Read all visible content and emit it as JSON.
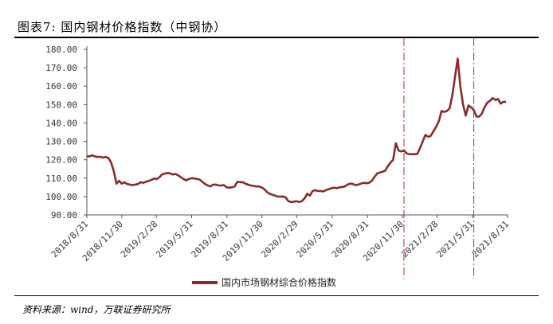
{
  "header": {
    "title": "图表7:  国内钢材价格指数（中钢协）"
  },
  "footer": {
    "source": "资料来源：wind，万联证券研究所"
  },
  "chart_data": {
    "type": "line",
    "title": "图表7:  国内钢材价格指数（中钢协）",
    "ylim": [
      90,
      180
    ],
    "yticks": [
      "90.00",
      "100.00",
      "110.00",
      "120.00",
      "130.00",
      "140.00",
      "150.00",
      "160.00",
      "170.00",
      "180.00"
    ],
    "xlabels": [
      "2018/8/31",
      "2018/11/30",
      "2019/2/28",
      "2019/5/31",
      "2019/8/31",
      "2019/11/30",
      "2020/2/29",
      "2020/5/31",
      "2020/8/31",
      "2020/11/30",
      "2021/2/28",
      "2021/5/31",
      "2021/8/31"
    ],
    "x_range": [
      "2018-08-31",
      "2021-08-31"
    ],
    "grid": false,
    "legend_position": "bottom",
    "line_color": "#8b2a2a",
    "reference_line_color": "#cc2222",
    "reference_lines": [
      "2020-12-04",
      "2021-06-04"
    ],
    "series": [
      {
        "name": "国内市场钢材综合价格指数",
        "points": [
          [
            "2018-08-31",
            122.0
          ],
          [
            "2018-09-07",
            121.8
          ],
          [
            "2018-09-14",
            122.5
          ],
          [
            "2018-09-21",
            121.8
          ],
          [
            "2018-09-28",
            121.5
          ],
          [
            "2018-10-05",
            121.6
          ],
          [
            "2018-10-12",
            121.2
          ],
          [
            "2018-10-19",
            121.5
          ],
          [
            "2018-10-26",
            121.0
          ],
          [
            "2018-11-02",
            118.5
          ],
          [
            "2018-11-09",
            114.0
          ],
          [
            "2018-11-16",
            107.0
          ],
          [
            "2018-11-23",
            108.5
          ],
          [
            "2018-11-30",
            107.0
          ],
          [
            "2018-12-07",
            107.8
          ],
          [
            "2018-12-14",
            106.8
          ],
          [
            "2018-12-21",
            106.5
          ],
          [
            "2018-12-28",
            106.2
          ],
          [
            "2019-01-04",
            106.5
          ],
          [
            "2019-01-11",
            106.8
          ],
          [
            "2019-01-18",
            107.8
          ],
          [
            "2019-01-25",
            107.5
          ],
          [
            "2019-02-01",
            108.0
          ],
          [
            "2019-02-08",
            108.5
          ],
          [
            "2019-02-15",
            109.0
          ],
          [
            "2019-02-22",
            109.8
          ],
          [
            "2019-03-01",
            109.5
          ],
          [
            "2019-03-08",
            110.5
          ],
          [
            "2019-03-15",
            112.0
          ],
          [
            "2019-03-22",
            112.5
          ],
          [
            "2019-03-29",
            112.8
          ],
          [
            "2019-04-05",
            112.6
          ],
          [
            "2019-04-12",
            112.0
          ],
          [
            "2019-04-19",
            112.3
          ],
          [
            "2019-04-26",
            111.5
          ],
          [
            "2019-05-03",
            110.5
          ],
          [
            "2019-05-10",
            109.5
          ],
          [
            "2019-05-17",
            108.8
          ],
          [
            "2019-05-24",
            109.5
          ],
          [
            "2019-05-31",
            110.0
          ],
          [
            "2019-06-07",
            109.8
          ],
          [
            "2019-06-14",
            109.5
          ],
          [
            "2019-06-21",
            109.2
          ],
          [
            "2019-06-28",
            108.0
          ],
          [
            "2019-07-05",
            106.8
          ],
          [
            "2019-07-12",
            106.0
          ],
          [
            "2019-07-19",
            105.5
          ],
          [
            "2019-07-26",
            106.5
          ],
          [
            "2019-08-02",
            106.5
          ],
          [
            "2019-08-09",
            106.0
          ],
          [
            "2019-08-16",
            106.0
          ],
          [
            "2019-08-23",
            106.2
          ],
          [
            "2019-08-30",
            105.0
          ],
          [
            "2019-09-06",
            104.8
          ],
          [
            "2019-09-13",
            105.0
          ],
          [
            "2019-09-20",
            105.5
          ],
          [
            "2019-09-27",
            108.0
          ],
          [
            "2019-10-04",
            107.8
          ],
          [
            "2019-10-11",
            107.8
          ],
          [
            "2019-10-18",
            107.0
          ],
          [
            "2019-10-25",
            106.5
          ],
          [
            "2019-11-01",
            106.0
          ],
          [
            "2019-11-08",
            105.8
          ],
          [
            "2019-11-15",
            105.5
          ],
          [
            "2019-11-22",
            105.5
          ],
          [
            "2019-11-29",
            105.0
          ],
          [
            "2019-12-06",
            104.0
          ],
          [
            "2019-12-13",
            102.5
          ],
          [
            "2019-12-20",
            101.5
          ],
          [
            "2019-12-27",
            101.0
          ],
          [
            "2020-01-03",
            100.5
          ],
          [
            "2020-01-10",
            100.0
          ],
          [
            "2020-01-17",
            100.0
          ],
          [
            "2020-01-24",
            100.0
          ],
          [
            "2020-01-31",
            99.5
          ],
          [
            "2020-02-07",
            97.5
          ],
          [
            "2020-02-14",
            97.0
          ],
          [
            "2020-02-21",
            97.2
          ],
          [
            "2020-02-28",
            97.5
          ],
          [
            "2020-03-06",
            97.0
          ],
          [
            "2020-03-13",
            97.5
          ],
          [
            "2020-03-20",
            99.0
          ],
          [
            "2020-03-27",
            101.5
          ],
          [
            "2020-04-03",
            100.5
          ],
          [
            "2020-04-10",
            103.0
          ],
          [
            "2020-04-17",
            103.5
          ],
          [
            "2020-04-24",
            103.0
          ],
          [
            "2020-05-01",
            103.0
          ],
          [
            "2020-05-08",
            102.8
          ],
          [
            "2020-05-15",
            103.5
          ],
          [
            "2020-05-22",
            104.0
          ],
          [
            "2020-05-29",
            104.5
          ],
          [
            "2020-06-05",
            104.8
          ],
          [
            "2020-06-12",
            104.5
          ],
          [
            "2020-06-19",
            105.0
          ],
          [
            "2020-06-26",
            105.2
          ],
          [
            "2020-07-03",
            105.5
          ],
          [
            "2020-07-10",
            106.5
          ],
          [
            "2020-07-17",
            107.0
          ],
          [
            "2020-07-24",
            106.8
          ],
          [
            "2020-07-31",
            106.2
          ],
          [
            "2020-08-07",
            106.5
          ],
          [
            "2020-08-14",
            107.0
          ],
          [
            "2020-08-21",
            107.5
          ],
          [
            "2020-08-28",
            107.2
          ],
          [
            "2020-09-04",
            107.5
          ],
          [
            "2020-09-11",
            108.5
          ],
          [
            "2020-09-18",
            110.5
          ],
          [
            "2020-09-25",
            112.5
          ],
          [
            "2020-10-02",
            113.0
          ],
          [
            "2020-10-09",
            113.5
          ],
          [
            "2020-10-16",
            114.0
          ],
          [
            "2020-10-23",
            116.5
          ],
          [
            "2020-10-30",
            118.5
          ],
          [
            "2020-11-06",
            120.0
          ],
          [
            "2020-11-13",
            129.0
          ],
          [
            "2020-11-20",
            125.0
          ],
          [
            "2020-11-27",
            124.5
          ],
          [
            "2020-12-04",
            125.0
          ],
          [
            "2020-12-11",
            123.5
          ],
          [
            "2020-12-18",
            123.0
          ],
          [
            "2020-12-25",
            123.0
          ],
          [
            "2021-01-01",
            123.0
          ],
          [
            "2021-01-08",
            123.2
          ],
          [
            "2021-01-15",
            126.5
          ],
          [
            "2021-01-22",
            130.0
          ],
          [
            "2021-01-29",
            133.5
          ],
          [
            "2021-02-05",
            132.5
          ],
          [
            "2021-02-12",
            133.0
          ],
          [
            "2021-02-19",
            135.5
          ],
          [
            "2021-02-26",
            138.0
          ],
          [
            "2021-03-05",
            141.0
          ],
          [
            "2021-03-12",
            146.5
          ],
          [
            "2021-03-19",
            146.0
          ],
          [
            "2021-03-26",
            146.5
          ],
          [
            "2021-04-02",
            148.0
          ],
          [
            "2021-04-09",
            155.0
          ],
          [
            "2021-04-16",
            165.0
          ],
          [
            "2021-04-23",
            175.0
          ],
          [
            "2021-04-30",
            160.0
          ],
          [
            "2021-05-07",
            150.0
          ],
          [
            "2021-05-14",
            144.0
          ],
          [
            "2021-05-21",
            149.5
          ],
          [
            "2021-05-28",
            148.5
          ],
          [
            "2021-06-04",
            147.0
          ],
          [
            "2021-06-11",
            143.5
          ],
          [
            "2021-06-18",
            143.5
          ],
          [
            "2021-06-25",
            145.0
          ],
          [
            "2021-07-02",
            148.5
          ],
          [
            "2021-07-09",
            151.0
          ],
          [
            "2021-07-16",
            152.0
          ],
          [
            "2021-07-23",
            153.5
          ],
          [
            "2021-07-30",
            152.5
          ],
          [
            "2021-08-06",
            153.0
          ],
          [
            "2021-08-13",
            150.5
          ],
          [
            "2021-08-20",
            151.5
          ],
          [
            "2021-08-27",
            151.5
          ]
        ]
      }
    ]
  }
}
